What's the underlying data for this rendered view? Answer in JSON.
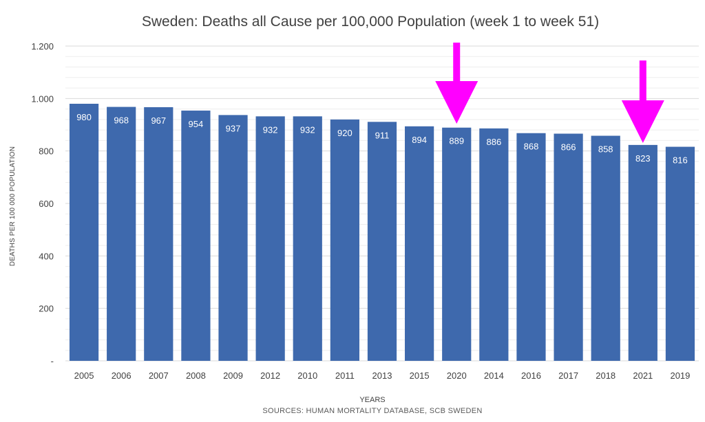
{
  "chart_data": {
    "type": "bar",
    "title": "Sweden: Deaths all Cause per 100,000 Population (week 1 to week 51)",
    "xlabel": "YEARS",
    "ylabel": "DEATHS PER 100 000 POPULATION",
    "source": "SOURCES: HUMAN MORTALITY DATABASE, SCB SWEDEN",
    "categories": [
      "2005",
      "2006",
      "2007",
      "2008",
      "2009",
      "2012",
      "2010",
      "2011",
      "2013",
      "2015",
      "2020",
      "2014",
      "2016",
      "2017",
      "2018",
      "2021",
      "2019"
    ],
    "values": [
      980,
      968,
      967,
      954,
      937,
      932,
      932,
      920,
      911,
      894,
      889,
      886,
      868,
      866,
      858,
      823,
      816
    ],
    "data_labels": [
      "980",
      "968",
      "967",
      "954",
      "937",
      "932",
      "932",
      "920",
      "911",
      "894",
      "889",
      "886",
      "868",
      "866",
      "858",
      "823",
      "816"
    ],
    "ylim": [
      0,
      1200
    ],
    "yticks": [
      0,
      200,
      400,
      600,
      800,
      1000,
      1200
    ],
    "ytick_labels": [
      "-",
      "200",
      "400",
      "600",
      "800",
      "1.000",
      "1.200"
    ],
    "minor_gridline_step": 40,
    "grid": true,
    "legend": "none",
    "bar_color": "#3e69ad",
    "annotations": [
      {
        "type": "arrow",
        "target_category": "2020",
        "color": "#ff00ff"
      },
      {
        "type": "arrow",
        "target_category": "2021",
        "color": "#ff00ff"
      }
    ]
  }
}
